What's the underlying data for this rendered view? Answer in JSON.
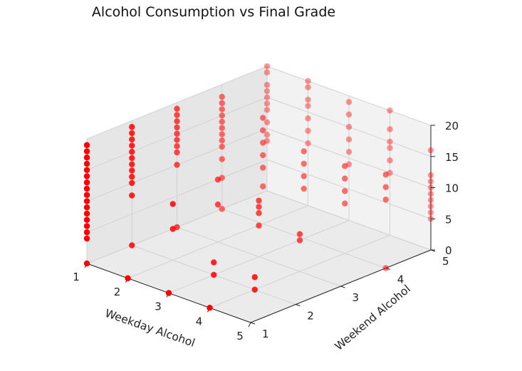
{
  "chart_data": {
    "type": "scatter",
    "projection": "3d",
    "title": "Alcohol Consumption vs Final Grade",
    "xlabel": "Weekday Alcohol",
    "ylabel": "Weekend Alcohol",
    "zlabel": "",
    "xticks": [
      "1",
      "2",
      "3",
      "4",
      "5"
    ],
    "yticks": [
      "1",
      "2",
      "3",
      "4",
      "5"
    ],
    "zticks": [
      "0",
      "5",
      "10",
      "15",
      "20"
    ],
    "xlim": [
      1,
      5
    ],
    "ylim": [
      1,
      5
    ],
    "zlim": [
      0,
      20
    ],
    "grid": true,
    "marker_color": "#ff0000",
    "points": [
      {
        "x": 1,
        "y": 1,
        "z": 0
      },
      {
        "x": 1,
        "y": 1,
        "z": 4
      },
      {
        "x": 1,
        "y": 1,
        "z": 5
      },
      {
        "x": 1,
        "y": 1,
        "z": 6
      },
      {
        "x": 1,
        "y": 1,
        "z": 7
      },
      {
        "x": 1,
        "y": 1,
        "z": 8
      },
      {
        "x": 1,
        "y": 1,
        "z": 9
      },
      {
        "x": 1,
        "y": 1,
        "z": 10
      },
      {
        "x": 1,
        "y": 1,
        "z": 11
      },
      {
        "x": 1,
        "y": 1,
        "z": 12
      },
      {
        "x": 1,
        "y": 1,
        "z": 13
      },
      {
        "x": 1,
        "y": 1,
        "z": 14
      },
      {
        "x": 1,
        "y": 1,
        "z": 15
      },
      {
        "x": 1,
        "y": 1,
        "z": 16
      },
      {
        "x": 1,
        "y": 1,
        "z": 17
      },
      {
        "x": 1,
        "y": 1,
        "z": 18
      },
      {
        "x": 1,
        "y": 1,
        "z": 19
      },
      {
        "x": 1,
        "y": 2,
        "z": 0
      },
      {
        "x": 1,
        "y": 2,
        "z": 8
      },
      {
        "x": 1,
        "y": 2,
        "z": 10
      },
      {
        "x": 1,
        "y": 2,
        "z": 11
      },
      {
        "x": 1,
        "y": 2,
        "z": 12
      },
      {
        "x": 1,
        "y": 2,
        "z": 13
      },
      {
        "x": 1,
        "y": 2,
        "z": 14
      },
      {
        "x": 1,
        "y": 2,
        "z": 15
      },
      {
        "x": 1,
        "y": 2,
        "z": 16
      },
      {
        "x": 1,
        "y": 2,
        "z": 17
      },
      {
        "x": 1,
        "y": 2,
        "z": 18
      },
      {
        "x": 1,
        "y": 2,
        "z": 19
      },
      {
        "x": 1,
        "y": 3,
        "z": 0
      },
      {
        "x": 1,
        "y": 3,
        "z": 10
      },
      {
        "x": 1,
        "y": 3,
        "z": 12
      },
      {
        "x": 1,
        "y": 3,
        "z": 13
      },
      {
        "x": 1,
        "y": 3,
        "z": 14
      },
      {
        "x": 1,
        "y": 3,
        "z": 15
      },
      {
        "x": 1,
        "y": 3,
        "z": 16
      },
      {
        "x": 1,
        "y": 3,
        "z": 17
      },
      {
        "x": 1,
        "y": 3,
        "z": 18
      },
      {
        "x": 1,
        "y": 3,
        "z": 19
      },
      {
        "x": 1,
        "y": 4,
        "z": 0
      },
      {
        "x": 1,
        "y": 4,
        "z": 5
      },
      {
        "x": 1,
        "y": 4,
        "z": 8
      },
      {
        "x": 1,
        "y": 4,
        "z": 10
      },
      {
        "x": 1,
        "y": 4,
        "z": 11
      },
      {
        "x": 1,
        "y": 4,
        "z": 12
      },
      {
        "x": 1,
        "y": 4,
        "z": 13
      },
      {
        "x": 1,
        "y": 4,
        "z": 14
      },
      {
        "x": 1,
        "y": 4,
        "z": 15
      },
      {
        "x": 1,
        "y": 4,
        "z": 16
      },
      {
        "x": 1,
        "y": 4,
        "z": 17
      },
      {
        "x": 1,
        "y": 4,
        "z": 18
      },
      {
        "x": 1,
        "y": 5,
        "z": 8
      },
      {
        "x": 1,
        "y": 5,
        "z": 9
      },
      {
        "x": 1,
        "y": 5,
        "z": 11
      },
      {
        "x": 1,
        "y": 5,
        "z": 13
      },
      {
        "x": 1,
        "y": 5,
        "z": 14
      },
      {
        "x": 1,
        "y": 5,
        "z": 15
      },
      {
        "x": 1,
        "y": 5,
        "z": 16
      },
      {
        "x": 1,
        "y": 5,
        "z": 17
      },
      {
        "x": 1,
        "y": 5,
        "z": 19
      },
      {
        "x": 1,
        "y": 5,
        "z": 20
      },
      {
        "x": 2,
        "y": 1,
        "z": 0
      },
      {
        "x": 2,
        "y": 2,
        "z": 5
      },
      {
        "x": 2,
        "y": 2,
        "z": 9
      },
      {
        "x": 2,
        "y": 3,
        "z": 6
      },
      {
        "x": 2,
        "y": 3,
        "z": 10
      },
      {
        "x": 2,
        "y": 4,
        "z": 6
      },
      {
        "x": 2,
        "y": 4,
        "z": 9
      },
      {
        "x": 2,
        "y": 4,
        "z": 11
      },
      {
        "x": 2,
        "y": 4,
        "z": 13
      },
      {
        "x": 2,
        "y": 4,
        "z": 15
      },
      {
        "x": 2,
        "y": 4,
        "z": 17
      },
      {
        "x": 2,
        "y": 5,
        "z": 10
      },
      {
        "x": 2,
        "y": 5,
        "z": 12
      },
      {
        "x": 2,
        "y": 5,
        "z": 14
      },
      {
        "x": 2,
        "y": 5,
        "z": 16
      },
      {
        "x": 2,
        "y": 5,
        "z": 17
      },
      {
        "x": 2,
        "y": 5,
        "z": 19
      },
      {
        "x": 2,
        "y": 5,
        "z": 20
      },
      {
        "x": 3,
        "y": 1,
        "z": 0
      },
      {
        "x": 3,
        "y": 2,
        "z": 0
      },
      {
        "x": 3,
        "y": 2,
        "z": 2
      },
      {
        "x": 3,
        "y": 3,
        "z": 5
      },
      {
        "x": 3,
        "y": 3,
        "z": 7
      },
      {
        "x": 3,
        "y": 3,
        "z": 8
      },
      {
        "x": 3,
        "y": 3,
        "z": 9
      },
      {
        "x": 3,
        "y": 4,
        "z": 8
      },
      {
        "x": 3,
        "y": 4,
        "z": 10
      },
      {
        "x": 3,
        "y": 4,
        "z": 12
      },
      {
        "x": 3,
        "y": 4,
        "z": 14
      },
      {
        "x": 3,
        "y": 5,
        "z": 9
      },
      {
        "x": 3,
        "y": 5,
        "z": 11
      },
      {
        "x": 3,
        "y": 5,
        "z": 13
      },
      {
        "x": 3,
        "y": 5,
        "z": 15
      },
      {
        "x": 3,
        "y": 5,
        "z": 17
      },
      {
        "x": 3,
        "y": 5,
        "z": 19
      },
      {
        "x": 4,
        "y": 1,
        "z": 0
      },
      {
        "x": 4,
        "y": 2,
        "z": 0
      },
      {
        "x": 4,
        "y": 2,
        "z": 2
      },
      {
        "x": 4,
        "y": 3,
        "z": 5
      },
      {
        "x": 4,
        "y": 3,
        "z": 6
      },
      {
        "x": 4,
        "y": 4,
        "z": 8
      },
      {
        "x": 4,
        "y": 4,
        "z": 10
      },
      {
        "x": 4,
        "y": 4,
        "z": 12
      },
      {
        "x": 4,
        "y": 4,
        "z": 14
      },
      {
        "x": 4,
        "y": 5,
        "z": 10
      },
      {
        "x": 4,
        "y": 5,
        "z": 12
      },
      {
        "x": 4,
        "y": 5,
        "z": 14
      },
      {
        "x": 4,
        "y": 5,
        "z": 15
      },
      {
        "x": 4,
        "y": 5,
        "z": 17
      },
      {
        "x": 4,
        "y": 5,
        "z": 20
      },
      {
        "x": 5,
        "y": 4,
        "z": 0
      },
      {
        "x": 5,
        "y": 4,
        "z": 11
      },
      {
        "x": 5,
        "y": 4,
        "z": 13
      },
      {
        "x": 5,
        "y": 4,
        "z": 15
      },
      {
        "x": 5,
        "y": 5,
        "z": 5
      },
      {
        "x": 5,
        "y": 5,
        "z": 6
      },
      {
        "x": 5,
        "y": 5,
        "z": 7
      },
      {
        "x": 5,
        "y": 5,
        "z": 8
      },
      {
        "x": 5,
        "y": 5,
        "z": 9
      },
      {
        "x": 5,
        "y": 5,
        "z": 10
      },
      {
        "x": 5,
        "y": 5,
        "z": 11
      },
      {
        "x": 5,
        "y": 5,
        "z": 12
      },
      {
        "x": 5,
        "y": 5,
        "z": 16
      }
    ]
  }
}
